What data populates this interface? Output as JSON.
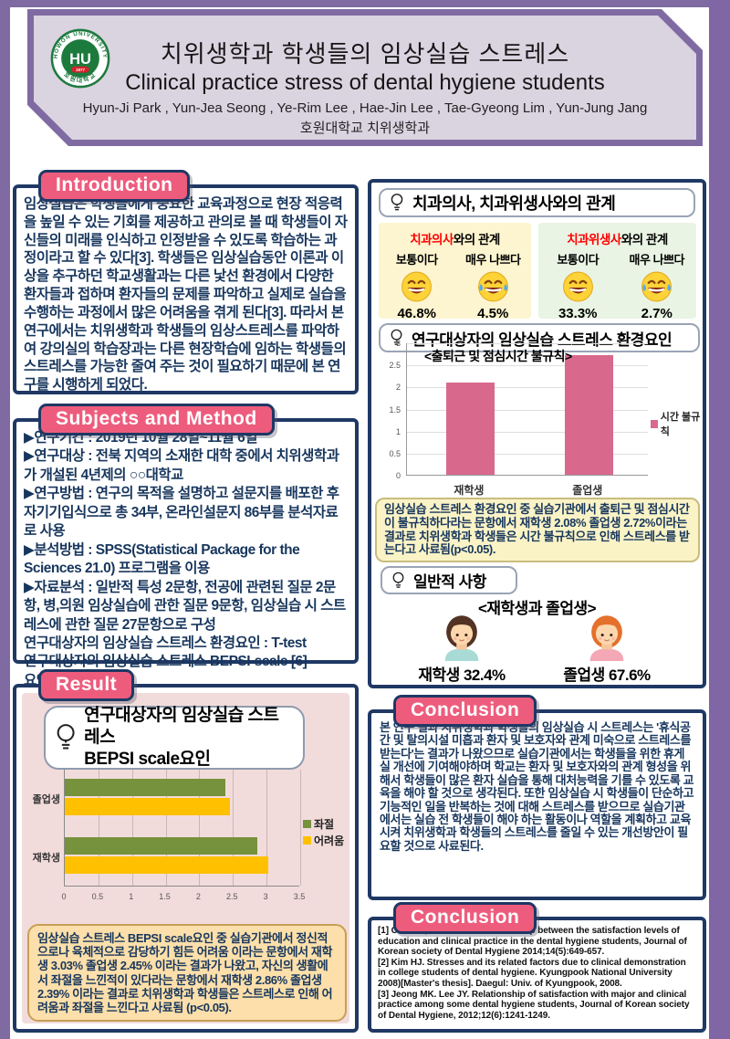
{
  "header": {
    "logo": {
      "top_text": "HOWON UNIVERSITY",
      "abbr": "HU",
      "year": "1877",
      "bottom_text": "호원대학교"
    },
    "title_ko": "치위생학과 학생들의 임상실습 스트레스",
    "title_en": "Clinical practice stress of dental hygiene students",
    "authors": "Hyun-Ji Park , Yun-Jea Seong , Ye-Rim Lee , Hae-Jin Lee , Tae-Gyeong Lim , Yun-Jung Jang",
    "affiliation": "호원대학교 치위생학과"
  },
  "introduction": {
    "label": "Introduction",
    "body": "임상실습은 학생들에게 중요한 교육과정으로 현장 적응력을 높일 수 있는 기회를 제공하고 관의로 볼 때 학생들이 자신들의 미래를 인식하고 인정받을 수 있도록 학습하는 과정이라고 할 수 있다[3]. 학생들은 임상실습동안 이론과 이상을 추구하던 학교생활과는 다른 낯선 환경에서 다양한 환자들과 접하며 환자들의 문제를 파악하고 실제로 실습을 수행하는 과정에서 많은 어려움을 겪게 된다[3]. 따라서 본 연구에서는 치위생학과 학생들의 임상스트레스를 파악하여 강의실의 학습장과는 다른 현장학습에 임하는 학생들의 스트레스를 가능한 줄여 주는 것이 필요하기 때문에 본 연구를 시행하게 되었다."
  },
  "methods": {
    "label": "Subjects and Method",
    "body": "▶연구기간 : 2019년 10월 28일~11월 6일\n▶연구대상 : 전북 지역의 소재한 대학 중에서 치위생학과가 개설된 4년제의 ○○대학교\n▶연구방법 : 연구의 목적을 설명하고 설문지를 배포한 후 자기기입식으로 총 34부, 온라인설문지 86부를 분석자료로 사용\n▶분석방법 : SPSS(Statistical Package for the Sciences 21.0) 프로그램을 이용\n▶자료분석 : 일반적 특성 2문항, 전공에 관련된 질문 2문항, 병,의원 임상실습에 관한 질문 9문항, 임상실습 시 스트레스에 관한 질문 27문항으로 구성\n 연구대상자의 임상실습 스트레스 환경요인 : T-test\n 연구대상자의 임상실습 스트레스 BEPSI-scale [6]\n 요인 : T-test"
  },
  "result": {
    "label": "Result",
    "chart_title_line1": "연구대상자의 임상실습 스트레스",
    "chart_title_line2": "BEPSI scale요인",
    "note": "임상실습 스트레스 BEPSI scale요인 중 실습기관에서 정신적으로나 육체적으로 감당하기 힘든 어려움 이라는 문항에서 재학생 3.03%  졸업생 2.45% 이라는 결과가 나왔고, 자신의 생활에서 좌절을 느낀적이 있다라는 문항에서 재학생 2.86% 졸업생 2.39% 이라는 결과로 치위생학과 학생들은 스트레스로 인해 어려움과 좌절을 느낀다고 사료됨 (p<0.05)."
  },
  "relations": {
    "title": "치과의사, 치과위생사와의 관계",
    "panels": [
      {
        "accent": "치과의사",
        "rest": "와의 관계",
        "items": [
          {
            "label": "보통이다",
            "value": "46.8%"
          },
          {
            "label": "매우 나쁘다",
            "value": "4.5%"
          }
        ]
      },
      {
        "accent": "치과위생사",
        "rest": "와의 관계",
        "items": [
          {
            "label": "보통이다",
            "value": "33.3%"
          },
          {
            "label": "매우 나쁘다",
            "value": "2.7%"
          }
        ]
      }
    ]
  },
  "env_factor": {
    "title": "연구대상자의 임상실습 스트레스 환경요인",
    "note": "임상실습 스트레스 환경요인 중 실습기관에서 출퇴근 및 점심시간이 불규칙하다라는 문항에서 재학생 2.08%  졸업생 2.72%이라는 결과로 치위생학과 학생들은 시간 불규칙으로 인해 스트레스를 받는다고 사료됨(p<0.05)."
  },
  "general": {
    "title": "일반적 사항",
    "subtitle": "<재학생과 졸업생>",
    "items": [
      {
        "label": "재학생 32.4%"
      },
      {
        "label": "졸업생 67.6%"
      }
    ]
  },
  "conclusion": {
    "label": "Conclusion",
    "body": "본 연구 결과 치위생학과 학생들의 임상실습 시 스트레스는 '휴식공간 및 탈의시설 미흡과 환자 및 보호자와 관계 미숙으로 스트레스를 받는다'는 결과가 나왔으므로 실습기관에서는 학생들을 위한 휴게실 개선에 기여해야하며 학교는 환자 및 보호자와의 관계 형성을 위해서 학생들이 많은 환자 실습을 통해 대처능력을 기를 수 있도록 교육을 해야 할 것으로 생각된다. 또한 임상실습 시 학생들이 단순하고 기능적인 일을 반복하는 것에 대해 스트레스를 받으므로 실습기관에서는 실습 전 학생들이 해야 하는 활동이나 역할을 계획하고 교육시켜 치위생학과 학생들의 스트레스를 줄일 수 있는 개선방안이 필요할 것으로 사료된다."
  },
  "references": {
    "label": "Conclusion",
    "items": [
      "[1] Cho MS, Kim CS. The relationship between the satisfaction levels of education and clinical practice in the dental hygiene students, Journal of Korean society of Dental Hygiene 2014;14(5):649-657.",
      "[2] Kim HJ. Stresses and its related factors due to clinical demonstration in college students of dental hygiene. Kyungpook National University 2008)[Master's thesis]. Daegul: Univ. of Kyungpook, 2008.",
      "[3] Jeong MK. Lee JY. Relationship of satisfaction with major and clinical practice among some dental hygiene students, Journal of Korean society of Dental Hygiene, 2012;12(6):1241-1249."
    ]
  },
  "chart_data": [
    {
      "type": "bar",
      "orientation": "horizontal",
      "title": "연구대상자의 임상실습 스트레스 BEPSI scale요인",
      "categories": [
        "졸업생",
        "재학생"
      ],
      "series": [
        {
          "name": "좌절",
          "color": "#76923c",
          "values": [
            2.39,
            2.86
          ]
        },
        {
          "name": "어려움",
          "color": "#ffc000",
          "values": [
            2.45,
            3.03
          ]
        }
      ],
      "xlim": [
        0,
        3.5
      ],
      "xticks": [
        0,
        0.5,
        1,
        1.5,
        2,
        2.5,
        3,
        3.5
      ],
      "grid": true,
      "legend_position": "right"
    },
    {
      "type": "bar",
      "orientation": "vertical",
      "title": "<출퇴근 및 점심시간 불규칙>",
      "categories": [
        "재학생",
        "졸업생"
      ],
      "series": [
        {
          "name": "시간 불규칙",
          "color": "#d9698c",
          "values": [
            2.08,
            2.72
          ]
        }
      ],
      "ylim": [
        0,
        3
      ],
      "yticks": [
        0,
        0.5,
        1,
        1.5,
        2,
        2.5,
        3
      ],
      "grid": true,
      "legend_position": "right"
    }
  ],
  "colors": {
    "accent_pink": "#ee5c7d",
    "border_navy": "#1f3864",
    "frame_purple": "#7f6ba2",
    "bar_green": "#76923c",
    "bar_yellow": "#ffc000",
    "bar_pink": "#d9698c",
    "accent_red": "#ff0000"
  }
}
